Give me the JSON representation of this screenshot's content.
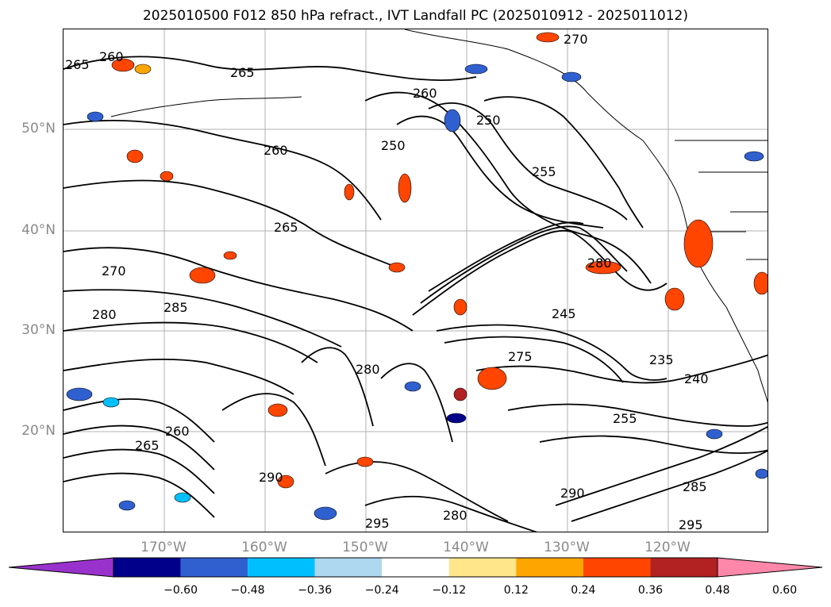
{
  "title": "2025010500 F012 850 hPa refract., IVT Landfall PC (2025010912 - 2025011012)",
  "lat_labels": [
    "50°N",
    "40°N",
    "30°N",
    "20°N"
  ],
  "lon_labels": [
    "170°W",
    "160°W",
    "150°W",
    "140°W",
    "130°W",
    "120°W"
  ],
  "colorbar": {
    "colors": [
      "#9932cc",
      "#00008b",
      "#3060d0",
      "#00bfff",
      "#add8f0",
      "#ffffff",
      "#ffe68a",
      "#ffa500",
      "#ff4500",
      "#b22222",
      "#ff88aa"
    ],
    "ticks": [
      "−0.60",
      "−0.48",
      "−0.36",
      "−0.24",
      "−0.12",
      "0.12",
      "0.24",
      "0.36",
      "0.48",
      "0.60"
    ]
  },
  "contour_labels": [
    {
      "text": "265"
    },
    {
      "text": "260"
    },
    {
      "text": "270"
    },
    {
      "text": "265"
    },
    {
      "text": "260"
    },
    {
      "text": "250"
    },
    {
      "text": "250"
    },
    {
      "text": "255"
    },
    {
      "text": "260"
    },
    {
      "text": "265"
    },
    {
      "text": "270"
    },
    {
      "text": "280"
    },
    {
      "text": "285"
    },
    {
      "text": "280"
    },
    {
      "text": "245"
    },
    {
      "text": "275"
    },
    {
      "text": "235"
    },
    {
      "text": "240"
    },
    {
      "text": "280"
    },
    {
      "text": "290"
    },
    {
      "text": "280"
    },
    {
      "text": "295"
    },
    {
      "text": "290"
    },
    {
      "text": "260"
    },
    {
      "text": "255"
    },
    {
      "text": "285"
    },
    {
      "text": "295"
    },
    {
      "text": "265"
    }
  ]
}
